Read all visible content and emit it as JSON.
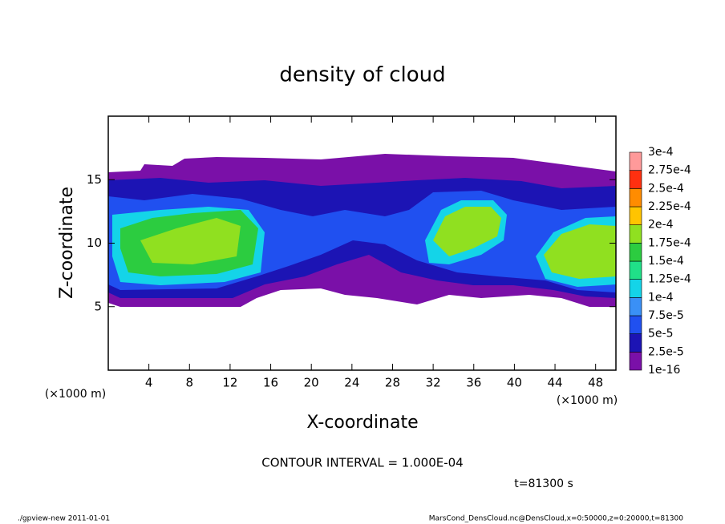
{
  "chart_data": {
    "type": "heatmap",
    "title": "density of cloud",
    "x_label": "X-coordinate",
    "y_label": "Z-coordinate",
    "x_unit": "(×1000 m)",
    "y_unit": "(×1000 m)",
    "xlim": [
      0,
      50
    ],
    "xticks": [
      4,
      8,
      12,
      16,
      20,
      24,
      28,
      32,
      36,
      40,
      44,
      48
    ],
    "ylim": [
      0,
      20
    ],
    "yticks": [
      5,
      10,
      15
    ],
    "annotation": "CONTOUR INTERVAL = 1.000E-04",
    "time_label": "t=81300 s",
    "footer_left": "./gpview-new   2011-01-01",
    "footer_right": "MarsCond_DensCloud.nc@DensCloud,x=0:50000,z=0:20000,t=81300",
    "colorbar": {
      "ticks": [
        {
          "value": 1e-16,
          "label": "1e-16"
        },
        {
          "value": 2.5e-05,
          "label": "2.5e-5"
        },
        {
          "value": 5e-05,
          "label": "5e-5"
        },
        {
          "value": 7.5e-05,
          "label": "7.5e-5"
        },
        {
          "value": 0.0001,
          "label": "1e-4"
        },
        {
          "value": 0.000125,
          "label": "1.25e-4"
        },
        {
          "value": 0.00015,
          "label": "1.5e-4"
        },
        {
          "value": 0.000175,
          "label": "1.75e-4"
        },
        {
          "value": 0.0002,
          "label": "2e-4"
        },
        {
          "value": 0.000225,
          "label": "2.25e-4"
        },
        {
          "value": 0.00025,
          "label": "2.5e-4"
        },
        {
          "value": 0.000275,
          "label": "2.75e-4"
        },
        {
          "value": 0.0003,
          "label": "3e-4"
        }
      ],
      "colors": [
        "#7a10a8",
        "#1c14b4",
        "#2050f0",
        "#3a90f6",
        "#14d4e8",
        "#20e088",
        "#2ccc40",
        "#90e020",
        "#ffc400",
        "#ff8c00",
        "#ff3010",
        "#ff9a9a"
      ]
    }
  }
}
